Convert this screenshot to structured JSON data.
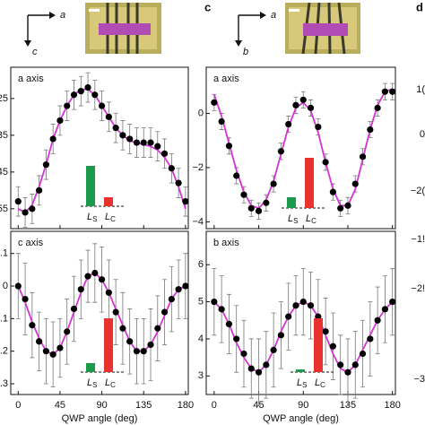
{
  "chart_data": [
    {
      "type": "scatter",
      "label": "a axis",
      "xlim": [
        -8,
        183
      ],
      "ylim": [
        -0.604,
        -0.165
      ],
      "xticks": [
        0,
        45,
        90,
        135,
        180
      ],
      "yticks": [
        {
          "value": -0.25,
          "label": "25"
        },
        {
          "value": -0.35,
          "label": "35"
        },
        {
          "value": -0.45,
          "label": "45"
        },
        {
          "value": -0.55,
          "label": "55"
        }
      ],
      "x": [
        0,
        7.5,
        15,
        22.5,
        30,
        37.5,
        45,
        52.5,
        60,
        67.5,
        75,
        82.5,
        90,
        97.5,
        105,
        112.5,
        120,
        127.5,
        135,
        142.5,
        150,
        157.5,
        165,
        172.5,
        180
      ],
      "series": [
        {
          "color": "#000000",
          "style": "points",
          "values": [
            -0.53,
            -0.56,
            -0.55,
            -0.5,
            -0.43,
            -0.36,
            -0.31,
            -0.27,
            -0.24,
            -0.23,
            -0.22,
            -0.24,
            -0.27,
            -0.3,
            -0.33,
            -0.35,
            -0.36,
            -0.37,
            -0.37,
            -0.37,
            -0.38,
            -0.4,
            -0.44,
            -0.48,
            -0.53
          ],
          "errors": [
            0.04,
            0.04,
            0.04,
            0.04,
            0.04,
            0.04,
            0.04,
            0.04,
            0.04,
            0.04,
            0.04,
            0.04,
            0.04,
            0.04,
            0.04,
            0.04,
            0.04,
            0.04,
            0.04,
            0.04,
            0.04,
            0.04,
            0.04,
            0.04,
            0.04
          ]
        },
        {
          "color": "#d633d6",
          "style": "line",
          "values": [
            -0.55,
            -0.56,
            -0.54,
            -0.49,
            -0.43,
            -0.36,
            -0.31,
            -0.27,
            -0.24,
            -0.225,
            -0.225,
            -0.24,
            -0.27,
            -0.3,
            -0.33,
            -0.35,
            -0.365,
            -0.37,
            -0.375,
            -0.38,
            -0.39,
            -0.41,
            -0.44,
            -0.49,
            -0.55
          ]
        }
      ],
      "inset": {
        "labels": [
          {
            "main": "L",
            "sub": "S"
          },
          {
            "main": "L",
            "sub": "C"
          }
        ],
        "values": [
          45,
          10
        ],
        "colors": [
          "#1a9a4a",
          "#e8322e"
        ]
      }
    },
    {
      "type": "scatter",
      "label": "c axis",
      "xlabel": "QWP angle (deg)",
      "xlim": [
        -8,
        183
      ],
      "ylim": [
        -0.333,
        0.168
      ],
      "xticks": [
        0,
        45,
        90,
        135,
        180
      ],
      "yticks": [
        {
          "value": 0.1,
          "label": ".1"
        },
        0,
        {
          "value": -0.1,
          "label": ".1"
        },
        {
          "value": -0.2,
          "label": ".2"
        },
        {
          "value": -0.3,
          "label": ".3"
        }
      ],
      "x": [
        0,
        7.5,
        15,
        22.5,
        30,
        37.5,
        45,
        52.5,
        60,
        67.5,
        75,
        82.5,
        90,
        97.5,
        105,
        112.5,
        120,
        127.5,
        135,
        142.5,
        150,
        157.5,
        165,
        172.5,
        180
      ],
      "series": [
        {
          "color": "#000000",
          "style": "points",
          "values": [
            0.0,
            -0.04,
            -0.12,
            -0.17,
            -0.2,
            -0.21,
            -0.19,
            -0.14,
            -0.07,
            -0.01,
            0.03,
            0.04,
            0.02,
            -0.02,
            -0.08,
            -0.13,
            -0.17,
            -0.2,
            -0.2,
            -0.18,
            -0.13,
            -0.08,
            -0.04,
            -0.01,
            0.0
          ],
          "errors": [
            0.1,
            0.11,
            0.1,
            0.09,
            0.1,
            0.1,
            0.09,
            0.1,
            0.1,
            0.09,
            0.08,
            0.09,
            0.1,
            0.1,
            0.1,
            0.11,
            0.1,
            0.1,
            0.1,
            0.11,
            0.1,
            0.1,
            0.1,
            0.09,
            0.1
          ]
        },
        {
          "color": "#d633d6",
          "style": "line",
          "values": [
            0.0,
            -0.05,
            -0.11,
            -0.16,
            -0.2,
            -0.21,
            -0.19,
            -0.14,
            -0.08,
            -0.02,
            0.03,
            0.04,
            0.02,
            -0.02,
            -0.07,
            -0.12,
            -0.17,
            -0.2,
            -0.2,
            -0.18,
            -0.14,
            -0.09,
            -0.04,
            -0.01,
            0.0
          ]
        }
      ],
      "inset": {
        "labels": [
          {
            "main": "L",
            "sub": "S"
          },
          {
            "main": "L",
            "sub": "C"
          }
        ],
        "values": [
          10,
          60
        ],
        "colors": [
          "#1a9a4a",
          "#e8322e"
        ]
      }
    },
    {
      "type": "scatter",
      "label": "a axis",
      "xlim": [
        -8,
        183
      ],
      "ylim": [
        -4.25,
        1.7
      ],
      "xticks": [
        0,
        45,
        90,
        135,
        180
      ],
      "yticks": [
        0,
        {
          "value": -2,
          "label": "−2"
        },
        {
          "value": -4,
          "label": "−4"
        }
      ],
      "x": [
        0,
        7.5,
        15,
        22.5,
        30,
        37.5,
        45,
        52.5,
        60,
        67.5,
        75,
        82.5,
        90,
        97.5,
        105,
        112.5,
        120,
        127.5,
        135,
        142.5,
        150,
        157.5,
        165,
        172.5,
        180
      ],
      "series": [
        {
          "color": "#000000",
          "style": "points",
          "values": [
            0.4,
            -0.3,
            -1.2,
            -2.3,
            -3.0,
            -3.5,
            -3.6,
            -3.3,
            -2.6,
            -1.4,
            -0.4,
            0.3,
            0.5,
            0.2,
            -0.5,
            -1.8,
            -2.9,
            -3.5,
            -3.4,
            -2.6,
            -1.6,
            -0.6,
            0.2,
            0.8,
            0.8
          ],
          "errors": [
            0.3,
            0.3,
            0.3,
            0.3,
            0.3,
            0.3,
            0.3,
            0.3,
            0.3,
            0.3,
            0.3,
            0.3,
            0.3,
            0.3,
            0.3,
            0.3,
            0.3,
            0.3,
            0.3,
            0.3,
            0.3,
            0.3,
            0.3,
            0.3,
            0.3
          ]
        },
        {
          "color": "#d633d6",
          "style": "line",
          "values": [
            0.7,
            -0.1,
            -1.1,
            -2.1,
            -2.9,
            -3.4,
            -3.5,
            -3.2,
            -2.5,
            -1.5,
            -0.5,
            0.2,
            0.4,
            0.1,
            -0.7,
            -1.8,
            -2.8,
            -3.4,
            -3.4,
            -2.8,
            -1.7,
            -0.6,
            0.3,
            0.8,
            0.9
          ]
        }
      ],
      "inset": {
        "labels": [
          {
            "main": "L",
            "sub": "S"
          },
          {
            "main": "L",
            "sub": "C"
          }
        ],
        "values": [
          12,
          56
        ],
        "colors": [
          "#1a9a4a",
          "#e8322e"
        ]
      }
    },
    {
      "type": "scatter",
      "label": "b axis",
      "xlabel": "QWP angle (deg)",
      "xlim": [
        -8,
        183
      ],
      "ylim": [
        2.5,
        6.9
      ],
      "xticks": [
        0,
        45,
        90,
        135,
        180
      ],
      "yticks": [
        6,
        5,
        4,
        3
      ],
      "x": [
        0,
        7.5,
        15,
        22.5,
        30,
        37.5,
        45,
        52.5,
        60,
        67.5,
        75,
        82.5,
        90,
        97.5,
        105,
        112.5,
        120,
        127.5,
        135,
        142.5,
        150,
        157.5,
        165,
        172.5,
        180
      ],
      "series": [
        {
          "color": "#000000",
          "style": "points",
          "values": [
            5.0,
            4.8,
            4.4,
            4.0,
            3.6,
            3.2,
            3.1,
            3.3,
            3.7,
            4.1,
            4.6,
            4.9,
            5.0,
            4.9,
            4.6,
            4.2,
            3.8,
            3.3,
            3.1,
            3.3,
            3.6,
            4.0,
            4.5,
            4.8,
            5.0
          ],
          "errors": [
            0.9,
            0.9,
            0.8,
            0.9,
            0.9,
            0.8,
            0.9,
            0.9,
            1.0,
            0.9,
            0.9,
            0.8,
            0.9,
            0.9,
            1.0,
            0.9,
            0.9,
            0.8,
            0.9,
            0.9,
            0.9,
            1.0,
            0.9,
            0.9,
            0.9
          ]
        },
        {
          "color": "#d633d6",
          "style": "line",
          "values": [
            5.0,
            4.8,
            4.4,
            3.9,
            3.5,
            3.2,
            3.1,
            3.3,
            3.7,
            4.2,
            4.6,
            4.9,
            5.0,
            4.9,
            4.6,
            4.1,
            3.6,
            3.2,
            3.1,
            3.3,
            3.7,
            4.1,
            4.5,
            4.8,
            5.0
          ]
        }
      ],
      "inset": {
        "labels": [
          {
            "main": "L",
            "sub": "S"
          },
          {
            "main": "L",
            "sub": "C"
          }
        ],
        "values": [
          3,
          60
        ],
        "colors": [
          "#1a9a4a",
          "#e8322e"
        ]
      }
    }
  ],
  "panel_labels": [
    "c",
    "d"
  ],
  "orientation": [
    {
      "h": "a",
      "v": "c"
    },
    {
      "h": "a",
      "v": "b"
    }
  ],
  "cropped_labels": [
    "1(",
    "0",
    "−2(",
    "−1!",
    "−2!",
    "−3"
  ]
}
